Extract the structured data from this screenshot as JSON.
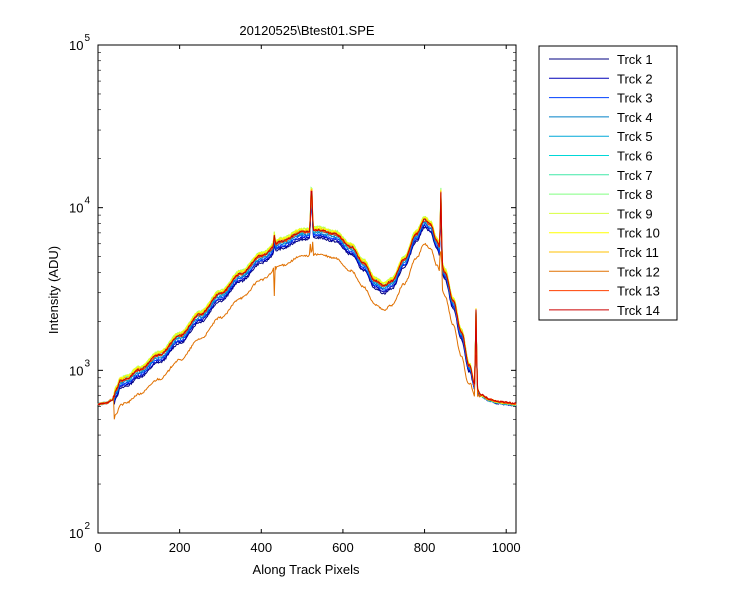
{
  "chart_data": {
    "type": "line",
    "title": "20120525\\Btest01.SPE",
    "xlabel": "Along Track Pixels",
    "ylabel": "Intensity (ADU)",
    "xlim": [
      0,
      1024
    ],
    "ylim": [
      100,
      100000
    ],
    "yscale": "log",
    "grid": false,
    "legend_position": "outside-right",
    "x_ticks": [
      0,
      200,
      400,
      600,
      800,
      1000
    ],
    "y_ticks": [
      {
        "base": "10",
        "exp": "2",
        "value": 100
      },
      {
        "base": "10",
        "exp": "3",
        "value": 1000
      },
      {
        "base": "10",
        "exp": "4",
        "value": 10000
      },
      {
        "base": "10",
        "exp": "5",
        "value": 100000
      }
    ],
    "base_profile": {
      "x": [
        0,
        20,
        35,
        45,
        55,
        70,
        100,
        150,
        200,
        250,
        300,
        350,
        400,
        450,
        500,
        540,
        580,
        620,
        650,
        680,
        700,
        720,
        750,
        780,
        800,
        815,
        830,
        850,
        870,
        890,
        910,
        925,
        940,
        960,
        980,
        1000,
        1024
      ],
      "y": [
        620,
        630,
        660,
        800,
        900,
        930,
        1050,
        1300,
        1700,
        2300,
        3100,
        4100,
        5300,
        6500,
        7400,
        7600,
        7200,
        6000,
        4800,
        3700,
        3450,
        3700,
        5000,
        7200,
        8800,
        8200,
        6500,
        4200,
        2800,
        1800,
        1100,
        800,
        700,
        660,
        640,
        630,
        620
      ]
    },
    "base_series": "Trck 9",
    "spikes": [
      {
        "x": 432,
        "factor": 1.15
      },
      {
        "x": 523,
        "factor": 1.75
      },
      {
        "x": 840,
        "factor": 2.5
      },
      {
        "x": 926,
        "factor": 3.0
      }
    ],
    "series": [
      {
        "name": "Trck 1",
        "color": "#000080",
        "scale": 0.86
      },
      {
        "name": "Trck 2",
        "color": "#0000b8",
        "scale": 0.88
      },
      {
        "name": "Trck 3",
        "color": "#0040ff",
        "scale": 0.9
      },
      {
        "name": "Trck 4",
        "color": "#0080c8",
        "scale": 0.92
      },
      {
        "name": "Trck 5",
        "color": "#00a8d8",
        "scale": 0.94
      },
      {
        "name": "Trck 6",
        "color": "#00d8d8",
        "scale": 0.96
      },
      {
        "name": "Trck 7",
        "color": "#40e8a8",
        "scale": 0.98
      },
      {
        "name": "Trck 8",
        "color": "#80ff80",
        "scale": 1.0
      },
      {
        "name": "Trck 9",
        "color": "#d8ff40",
        "scale": 1.0
      },
      {
        "name": "Trck 10",
        "color": "#ffff00",
        "scale": 0.99
      },
      {
        "name": "Trck 11",
        "color": "#ffc000",
        "scale": 0.97
      },
      {
        "name": "Trck 12",
        "color": "#e07000",
        "scale": 0.68
      },
      {
        "name": "Trck 13",
        "color": "#ff4000",
        "scale": 0.95
      },
      {
        "name": "Trck 14",
        "color": "#cc0000",
        "scale": 0.96
      }
    ]
  }
}
